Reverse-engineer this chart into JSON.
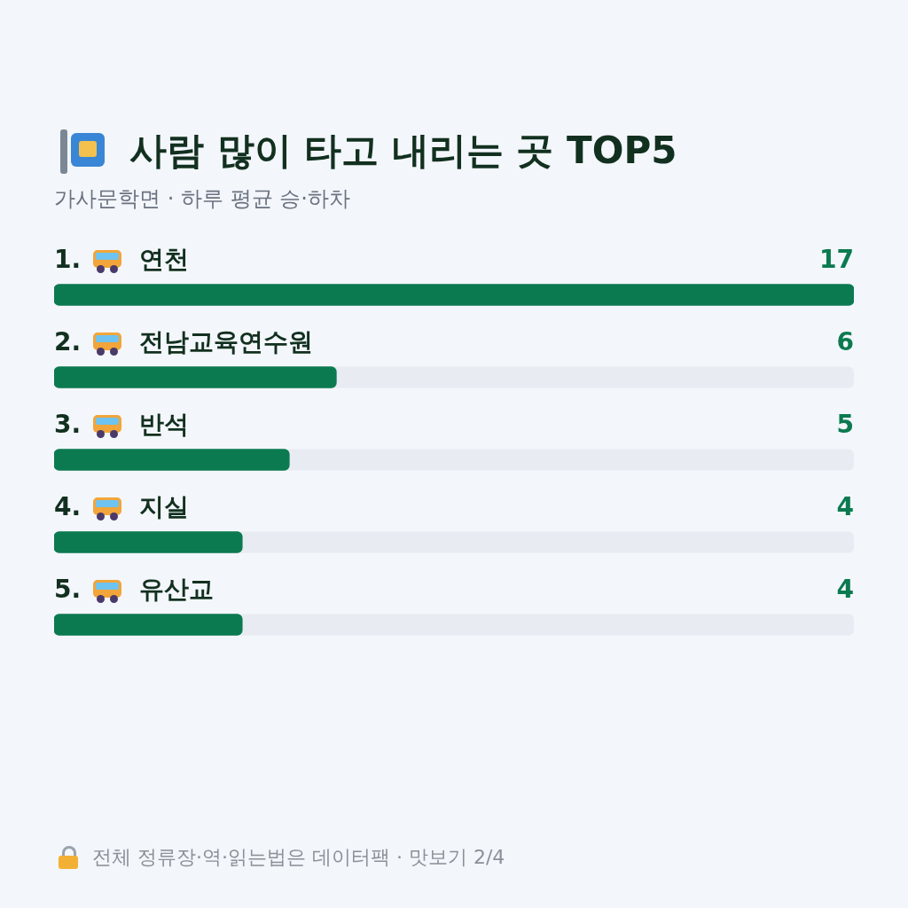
{
  "chart_data": {
    "type": "bar",
    "orientation": "horizontal",
    "title": "사람 많이 타고 내리는 곳 TOP5",
    "subtitle": "가사문학면 · 하루 평균 승·하차",
    "categories": [
      "1. 연천",
      "2. 전남교육연수원",
      "3. 반석",
      "4. 지실",
      "5. 유산교"
    ],
    "values": [
      17,
      6,
      5,
      4,
      4
    ],
    "color": "#0b7a50",
    "data_labels": true,
    "annotations": [
      "전체 정류장·역·읽는법은 데이터팩 · 맛보기 2/4"
    ]
  }
}
